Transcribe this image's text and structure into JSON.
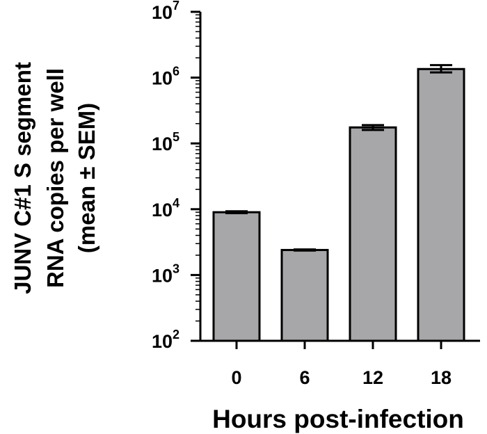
{
  "chart_data": {
    "type": "bar",
    "title": "",
    "xlabel": "Hours post-infection",
    "ylabel_lines": [
      "JUNV C#1 S segment",
      "RNA copies per well",
      "(mean ± SEM)"
    ],
    "yscale": "log",
    "ylim": [
      100,
      10000000
    ],
    "y_ticks": [
      {
        "base": "10",
        "exp": "2"
      },
      {
        "base": "10",
        "exp": "3"
      },
      {
        "base": "10",
        "exp": "4"
      },
      {
        "base": "10",
        "exp": "5"
      },
      {
        "base": "10",
        "exp": "6"
      },
      {
        "base": "10",
        "exp": "7"
      }
    ],
    "categories": [
      "0",
      "6",
      "12",
      "18"
    ],
    "values": [
      9000,
      2400,
      175000,
      1350000
    ],
    "error_low": [
      8700,
      2350,
      160000,
      1200000
    ],
    "error_high": [
      9300,
      2450,
      190000,
      1550000
    ],
    "bar_color": "#a7a6a9",
    "grid": false,
    "legend": "none"
  }
}
